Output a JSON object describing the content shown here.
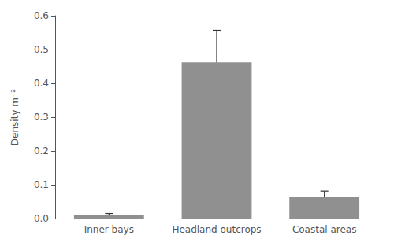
{
  "chart_data": {
    "type": "bar",
    "categories": [
      "Inner bays",
      "Headland outcrops",
      "Coastal areas"
    ],
    "values": [
      0.01,
      0.462,
      0.063
    ],
    "errors": [
      0.005,
      0.095,
      0.018
    ],
    "color": "#909090",
    "ylabel": "Density m⁻²",
    "ylim": [
      0,
      0.6
    ],
    "yticks": [
      {
        "value": 0.0,
        "label": "0.0"
      },
      0.1,
      0.2,
      0.3,
      0.4,
      0.5,
      0.6
    ],
    "grid": false
  }
}
